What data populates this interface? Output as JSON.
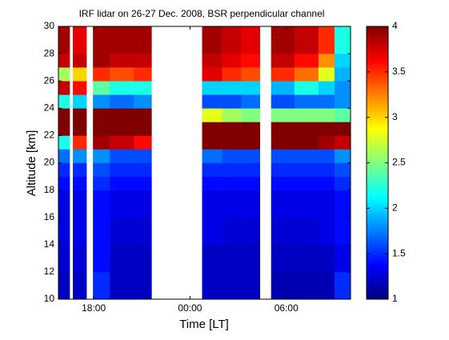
{
  "chart_data": {
    "type": "heatmap",
    "title": "IRF lidar on 26-27 Dec. 2008, BSR perpendicular channel",
    "x_label": "Time [LT]",
    "y_label": "Altitude [km]",
    "x_edges": [
      15.8,
      16.5,
      16.7,
      17.55,
      17.95,
      19.0,
      20.5,
      21.6,
      24.75,
      26,
      27.2,
      28.35,
      29.05,
      30.5,
      32,
      33,
      34
    ],
    "y_edges": [
      10,
      12,
      14,
      16,
      18,
      19,
      20,
      21,
      22,
      23,
      24,
      25,
      26,
      27,
      28,
      30
    ],
    "z": [
      [
        1.2,
        null,
        1.2,
        null,
        1.5,
        1.2,
        1.2,
        null,
        1.2,
        1.2,
        1.2,
        null,
        1.15,
        1.15,
        1.15,
        1.5
      ],
      [
        1.25,
        null,
        1.25,
        null,
        1.4,
        1.2,
        1.2,
        null,
        1.2,
        1.2,
        1.2,
        null,
        1.2,
        1.2,
        1.2,
        1.3
      ],
      [
        1.3,
        null,
        1.3,
        null,
        1.4,
        1.25,
        1.25,
        null,
        1.3,
        1.25,
        1.25,
        null,
        1.25,
        1.25,
        1.3,
        1.4
      ],
      [
        1.3,
        null,
        1.3,
        null,
        1.4,
        1.3,
        1.3,
        null,
        1.3,
        1.3,
        1.3,
        null,
        1.3,
        1.3,
        1.3,
        1.4
      ],
      [
        1.4,
        null,
        1.4,
        null,
        1.5,
        1.4,
        1.4,
        null,
        1.4,
        1.4,
        1.4,
        null,
        1.4,
        1.4,
        1.4,
        1.5
      ],
      [
        1.5,
        null,
        1.5,
        null,
        1.6,
        1.5,
        1.5,
        null,
        1.5,
        1.5,
        1.5,
        null,
        1.5,
        1.5,
        1.5,
        1.6
      ],
      [
        1.7,
        null,
        1.8,
        null,
        1.8,
        1.6,
        1.6,
        null,
        1.7,
        1.6,
        1.6,
        null,
        1.6,
        1.6,
        1.6,
        1.8
      ],
      [
        2.2,
        null,
        3.5,
        null,
        3.9,
        3.8,
        3.6,
        null,
        4,
        4,
        4,
        null,
        4,
        4,
        3.9,
        3.8
      ],
      [
        4,
        null,
        4,
        null,
        4,
        4,
        4,
        null,
        4,
        4,
        4,
        null,
        4,
        4,
        4,
        4
      ],
      [
        4,
        null,
        4,
        null,
        4,
        4,
        4,
        null,
        2.8,
        2.6,
        2.5,
        null,
        2.5,
        2.5,
        2.5,
        2.4
      ],
      [
        2.2,
        null,
        2,
        null,
        1.8,
        1.7,
        1.8,
        null,
        1.6,
        1.6,
        1.7,
        null,
        1.6,
        1.7,
        1.7,
        1.8
      ],
      [
        3.8,
        null,
        3.6,
        null,
        2.4,
        2.2,
        2.2,
        null,
        2,
        2,
        2,
        null,
        1.9,
        2.2,
        2,
        1.8
      ],
      [
        2.6,
        null,
        3,
        null,
        3.5,
        3.4,
        3.5,
        null,
        3.7,
        3.5,
        3.4,
        null,
        3.5,
        3.3,
        2.8,
        1.9
      ],
      [
        3.8,
        null,
        3.8,
        null,
        3.9,
        3.8,
        3.8,
        null,
        3.8,
        3.7,
        3.6,
        null,
        3.8,
        3.6,
        3.2,
        2
      ],
      [
        3.9,
        null,
        3.7,
        null,
        3.9,
        3.9,
        3.9,
        null,
        3.9,
        3.8,
        3.7,
        null,
        3.9,
        3.8,
        3.5,
        2.2
      ]
    ],
    "xlim": [
      15.8,
      34
    ],
    "ylim": [
      10,
      30
    ],
    "xticks": [
      {
        "value": 18,
        "label": "18:00"
      },
      {
        "value": 24,
        "label": "00:00"
      },
      {
        "value": 30,
        "label": "06:00"
      }
    ],
    "yticks": [
      10,
      12,
      14,
      16,
      18,
      20,
      22,
      24,
      26,
      28,
      30
    ],
    "colormap": "jet",
    "zlim": [
      1,
      4
    ],
    "zticks": [
      1,
      1.5,
      2,
      2.5,
      3,
      3.5,
      4
    ]
  }
}
